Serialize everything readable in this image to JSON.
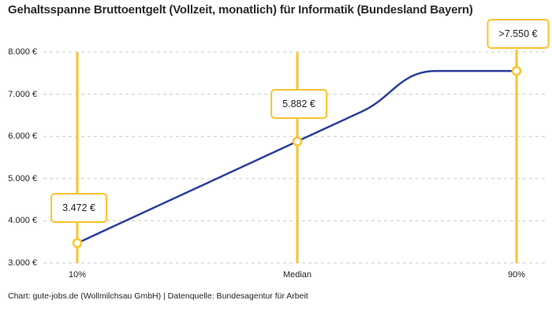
{
  "title": "Gehaltsspanne Bruttoentgelt (Vollzeit, monatlich) für Informatik (Bundesland Bayern)",
  "footer": "Chart: gute-jobs.de (Wollmilchsau GmbH) | Datenquelle: Bundesagentur für Arbeit",
  "colors": {
    "accent_yellow": "#FBC32C",
    "line_blue": "#2A3E9C",
    "grid_gray": "#CCCCCC",
    "text_dark": "#2B2B2B"
  },
  "chart_data": {
    "type": "line",
    "title": "Gehaltsspanne Bruttoentgelt (Vollzeit, monatlich) für Informatik (Bundesland Bayern)",
    "xlabel": "",
    "ylabel": "",
    "x": [
      "10%",
      "Median",
      "90%"
    ],
    "points": [
      {
        "label": "10%",
        "value": 3472,
        "display": "3.472 €",
        "capped": false
      },
      {
        "label": "Median",
        "value": 5882,
        "display": "5.882 €",
        "capped": false
      },
      {
        "label": "90%",
        "value": 7550,
        "display": ">7.550 €",
        "capped": true
      }
    ],
    "ylim": [
      3000,
      8000
    ],
    "y_ticks": [
      {
        "value": 8000,
        "label": "8.000 €"
      },
      {
        "value": 7000,
        "label": "7.000 €"
      },
      {
        "value": 6000,
        "label": "6.000 €"
      },
      {
        "value": 5000,
        "label": "5.000 €"
      },
      {
        "value": 4000,
        "label": "4.000 €"
      },
      {
        "value": 3000,
        "label": "3.000 €"
      }
    ],
    "grid": true,
    "legend": "none",
    "notes": "Line rises linearly from 10% percentile through Median, then flattens to a plateau at the capped 90% percentile value."
  }
}
